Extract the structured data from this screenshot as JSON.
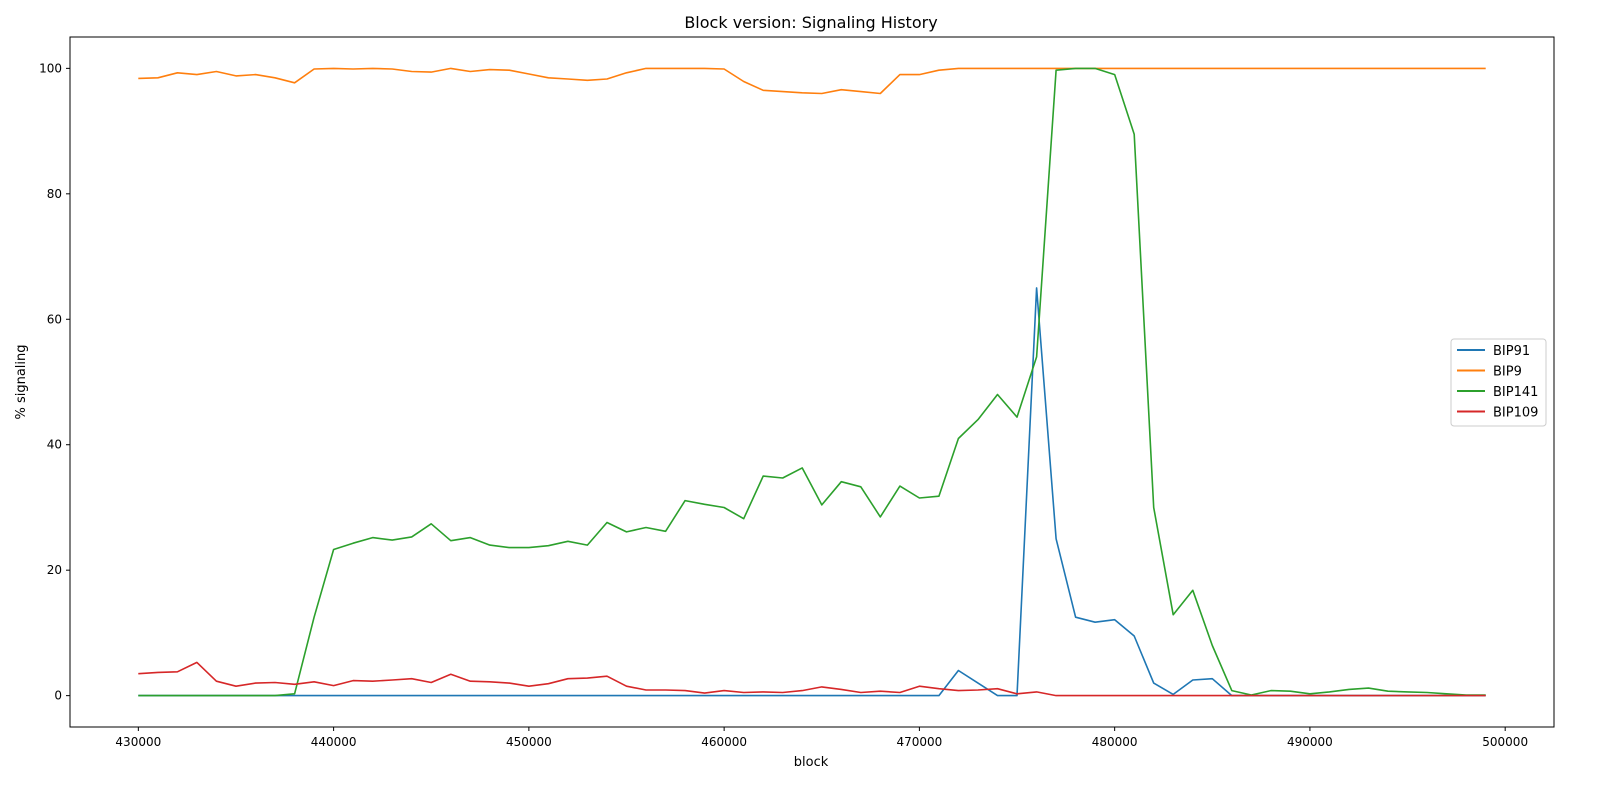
{
  "chart_data": {
    "type": "line",
    "title": "Block version: Signaling History",
    "xlabel": "block",
    "ylabel": "% signaling",
    "xlim": [
      426500,
      502500
    ],
    "ylim": [
      -5,
      105
    ],
    "xticks": [
      430000,
      440000,
      450000,
      460000,
      470000,
      480000,
      490000,
      500000
    ],
    "yticks": [
      0,
      20,
      40,
      60,
      80,
      100
    ],
    "grid": false,
    "legend_position": "center-right",
    "x": [
      430000,
      431000,
      432000,
      433000,
      434000,
      435000,
      436000,
      437000,
      438000,
      439000,
      440000,
      441000,
      442000,
      443000,
      444000,
      445000,
      446000,
      447000,
      448000,
      449000,
      450000,
      451000,
      452000,
      453000,
      454000,
      455000,
      456000,
      457000,
      458000,
      459000,
      460000,
      461000,
      462000,
      463000,
      464000,
      465000,
      466000,
      467000,
      468000,
      469000,
      470000,
      471000,
      472000,
      473000,
      474000,
      475000,
      476000,
      477000,
      478000,
      479000,
      480000,
      481000,
      482000,
      483000,
      484000,
      485000,
      486000,
      487000,
      488000,
      489000,
      490000,
      491000,
      492000,
      493000,
      494000,
      495000,
      496000,
      497000,
      498000,
      499000
    ],
    "series": [
      {
        "name": "BIP91",
        "color": "#1f77b4",
        "values": [
          0,
          0,
          0,
          0,
          0,
          0,
          0,
          0,
          0,
          0,
          0,
          0,
          0,
          0,
          0,
          0,
          0,
          0,
          0,
          0,
          0,
          0,
          0,
          0,
          0,
          0,
          0,
          0,
          0,
          0,
          0,
          0,
          0,
          0,
          0,
          0,
          0,
          0,
          0,
          0,
          0,
          0,
          4,
          2,
          0,
          0,
          65,
          25,
          12.5,
          11.7,
          12.1,
          9.5,
          2,
          0.2,
          2.5,
          2.7,
          0,
          0,
          0,
          0,
          0,
          0,
          0,
          0,
          0,
          0,
          0,
          0,
          0,
          0
        ]
      },
      {
        "name": "BIP9",
        "color": "#ff7f0e",
        "values": [
          98.4,
          98.5,
          99.3,
          99,
          99.5,
          98.8,
          99,
          98.5,
          97.7,
          99.9,
          100,
          99.9,
          100,
          99.9,
          99.5,
          99.4,
          100,
          99.5,
          99.8,
          99.7,
          99.1,
          98.5,
          98.3,
          98.1,
          98.3,
          99.3,
          100,
          100,
          100,
          100,
          99.9,
          97.9,
          96.5,
          96.3,
          96.1,
          96,
          96.6,
          96.3,
          96,
          99,
          99,
          99.7,
          100,
          100,
          100,
          100,
          100,
          100,
          100,
          100,
          100,
          100,
          100,
          100,
          100,
          100,
          100,
          100,
          100,
          100,
          100,
          100,
          100,
          100,
          100,
          100,
          100,
          100,
          100,
          100
        ]
      },
      {
        "name": "BIP141",
        "color": "#2ca02c",
        "values": [
          0,
          0,
          0,
          0,
          0,
          0,
          0,
          0,
          0.3,
          12.5,
          23.3,
          24.3,
          25.2,
          24.8,
          25.3,
          27.4,
          24.7,
          25.2,
          24,
          23.6,
          23.6,
          23.9,
          24.6,
          24,
          27.6,
          26.1,
          26.8,
          26.2,
          31.1,
          30.5,
          30,
          28.2,
          35,
          34.7,
          36.3,
          30.4,
          34.1,
          33.3,
          28.5,
          33.4,
          31.5,
          31.8,
          41,
          44,
          48,
          44.4,
          54,
          99.7,
          100,
          100,
          99,
          89.5,
          30,
          12.9,
          16.8,
          8,
          0.8,
          0.1,
          0.8,
          0.7,
          0.3,
          0.6,
          1,
          1.2,
          0.7,
          0.6,
          0.5,
          0.3,
          0.1,
          0.1
        ]
      },
      {
        "name": "BIP109",
        "color": "#d62728",
        "values": [
          3.5,
          3.7,
          3.8,
          5.3,
          2.3,
          1.5,
          2,
          2.1,
          1.8,
          2.2,
          1.6,
          2.4,
          2.3,
          2.5,
          2.7,
          2.1,
          3.4,
          2.3,
          2.2,
          2,
          1.5,
          1.9,
          2.7,
          2.8,
          3.1,
          1.5,
          0.9,
          0.9,
          0.8,
          0.4,
          0.8,
          0.5,
          0.6,
          0.5,
          0.8,
          1.4,
          1,
          0.5,
          0.7,
          0.5,
          1.5,
          1.1,
          0.8,
          0.9,
          1.1,
          0.3,
          0.6,
          0,
          0,
          0,
          0,
          0,
          0,
          0,
          0,
          0,
          0,
          0,
          0,
          0,
          0,
          0,
          0,
          0,
          0,
          0,
          0,
          0,
          0,
          0
        ]
      }
    ]
  }
}
